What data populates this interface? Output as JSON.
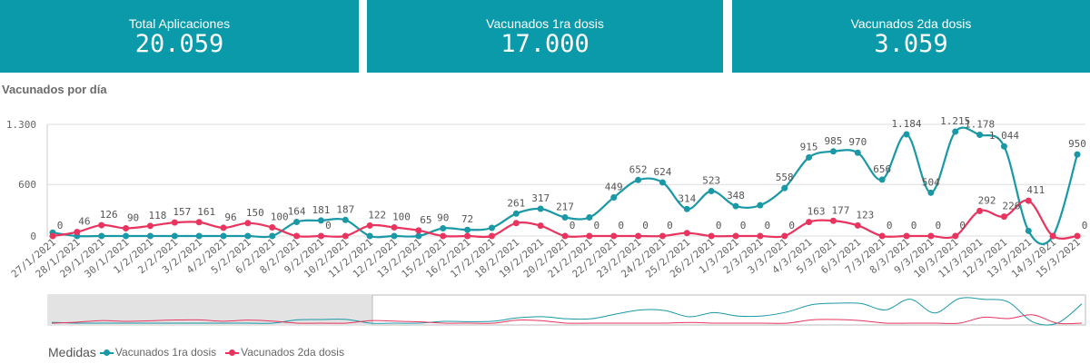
{
  "kpis": [
    {
      "title": "Total Aplicaciones",
      "value": "20.059"
    },
    {
      "title": "Vacunados 1ra dosis",
      "value": "17.000"
    },
    {
      "title": "Vacunados 2da dosis",
      "value": "3.059"
    }
  ],
  "chart_title": "Vacunados por día",
  "legend": {
    "title": "Medidas",
    "items": [
      "Vacunados 1ra dosis",
      "Vacunados 2da dosis"
    ]
  },
  "colors": {
    "kpi_bg": "#0a9aaa",
    "series1": "#1a98a5",
    "series2": "#e8345e"
  },
  "chart_data": {
    "type": "line",
    "title": "Vacunados por día",
    "y_ticks": [
      {
        "value": 0,
        "label": "0"
      },
      {
        "value": 600,
        "label": "600"
      },
      {
        "value": 1300,
        "label": "1.300"
      }
    ],
    "ylim": [
      0,
      1300
    ],
    "grid": true,
    "legend_placement": "bottom-left",
    "categories": [
      "27/1/2021",
      "28/1/2021",
      "29/1/2021",
      "30/1/2021",
      "1/2/2021",
      "2/2/2021",
      "3/2/2021",
      "4/2/2021",
      "5/2/2021",
      "6/2/2021",
      "8/2/2021",
      "9/2/2021",
      "10/2/2021",
      "11/2/2021",
      "12/2/2021",
      "13/2/2021",
      "15/2/2021",
      "16/2/2021",
      "17/2/2021",
      "18/2/2021",
      "19/2/2021",
      "20/2/2021",
      "21/2/2021",
      "22/2/2021",
      "23/2/2021",
      "24/2/2021",
      "25/2/2021",
      "26/2/2021",
      "1/3/2021",
      "2/3/2021",
      "3/3/2021",
      "4/3/2021",
      "5/3/2021",
      "6/3/2021",
      "7/3/2021",
      "8/3/2021",
      "9/3/2021",
      "10/3/2021",
      "11/3/2021",
      "12/3/2021",
      "13/3/2021",
      "14/3/2021",
      "15/3/2021"
    ],
    "series": [
      {
        "name": "Vacunados 1ra dosis",
        "values": [
          40,
          0,
          0,
          0,
          0,
          0,
          0,
          0,
          0,
          0,
          164,
          181,
          187,
          0,
          0,
          0,
          90,
          72,
          95,
          261,
          317,
          217,
          217,
          449,
          652,
          624,
          314,
          523,
          348,
          358,
          558,
          915,
          985,
          970,
          656,
          1184,
          504,
          1215,
          1178,
          1044,
          60,
          0,
          950
        ],
        "labels": [
          "",
          "",
          "",
          "",
          "",
          "",
          "",
          "",
          "",
          "",
          "164",
          "181",
          "187",
          "",
          "",
          "",
          "90",
          "72",
          "",
          "261",
          "317",
          "217",
          "",
          "449",
          "652",
          "624",
          "314",
          "523",
          "348",
          "",
          "558",
          "915",
          "985",
          "970",
          "656",
          "1.184",
          "504",
          "1.215",
          "1.178",
          "1.044",
          "",
          "",
          "950"
        ]
      },
      {
        "name": "Vacunados 2da dosis",
        "values": [
          0,
          46,
          126,
          90,
          118,
          157,
          161,
          96,
          150,
          100,
          0,
          0,
          0,
          122,
          100,
          65,
          0,
          0,
          0,
          150,
          120,
          0,
          0,
          0,
          0,
          0,
          35,
          0,
          0,
          0,
          0,
          163,
          177,
          123,
          0,
          0,
          0,
          0,
          292,
          226,
          411,
          0,
          0
        ],
        "labels": [
          "0",
          "46",
          "126",
          "90",
          "118",
          "157",
          "161",
          "96",
          "150",
          "100",
          "",
          "0",
          "",
          "122",
          "100",
          "65",
          "",
          "",
          "",
          "",
          "",
          "0",
          "0",
          "0",
          "0",
          "0",
          "",
          "0",
          "0",
          "0",
          "0",
          "163",
          "177",
          "123",
          "0",
          "0",
          "0",
          "0",
          "292",
          "226",
          "411",
          "",
          "0"
        ]
      }
    ]
  }
}
